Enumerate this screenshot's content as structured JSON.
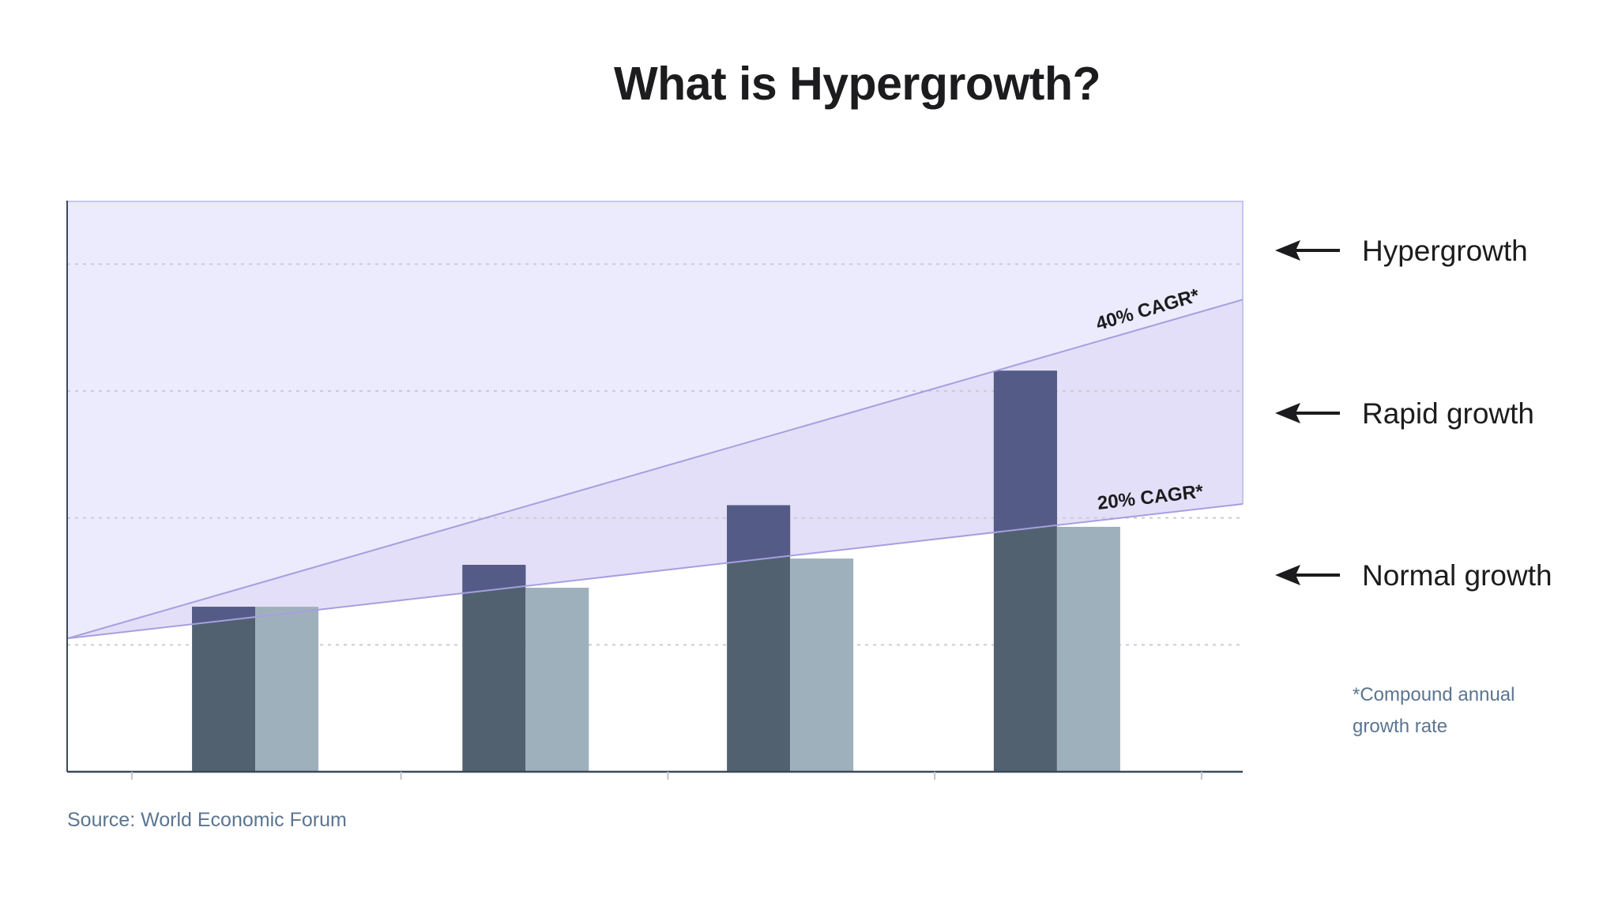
{
  "chart_data": {
    "type": "bar",
    "title": "What is Hypergrowth?",
    "xlabel": "",
    "ylabel": "",
    "ylim": [
      0,
      4.5
    ],
    "grid": true,
    "categories": [
      "",
      "",
      "",
      ""
    ],
    "series": [
      {
        "values": [
          1.3,
          1.63,
          2.1,
          3.16
        ]
      },
      {
        "values": [
          1.3,
          1.45,
          1.68,
          1.93
        ]
      }
    ],
    "reference_lines": [
      {
        "label": "40% CAGR*",
        "from": 1.05,
        "to": 3.72
      },
      {
        "label": "20% CAGR*",
        "from": 1.05,
        "to": 2.11
      }
    ],
    "zones": [
      "Hypergrowth",
      "Rapid growth",
      "Normal growth"
    ],
    "footnote": [
      "*Compound annual",
      "growth rate"
    ],
    "source": "Source: World Economic Forum",
    "colors": {
      "bar_dark": "#526170",
      "bar_light": "#9fb0bd",
      "bar_dark_in_rapid": "#555b87",
      "hyper_zone": "#ebebfd",
      "rapid_zone": "#e4dff8",
      "line": "#a69fe0",
      "axis": "#3a4a5a",
      "text": "#1c1c1e"
    }
  }
}
